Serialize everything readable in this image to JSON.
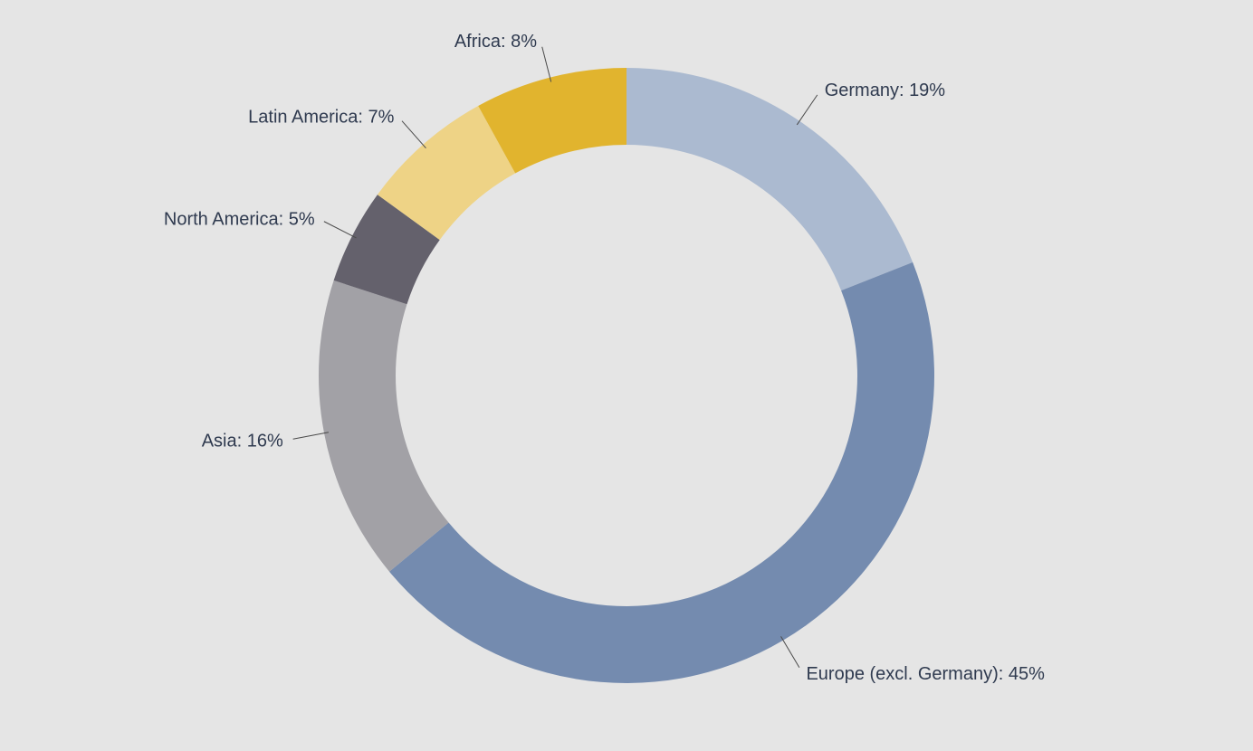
{
  "chart_data": {
    "type": "pie",
    "subtype": "donut",
    "background": "#e5e5e5",
    "start_angle_deg": 0,
    "direction": "clockwise",
    "unit": "%",
    "slices": [
      {
        "label": "Germany",
        "value": 19,
        "color": "#abbad0",
        "display": "Germany: 19%"
      },
      {
        "label": "Europe (excl. Germany)",
        "value": 45,
        "color": "#748baf",
        "display": "Europe (excl. Germany): 45%"
      },
      {
        "label": "Asia",
        "value": 16,
        "color": "#a2a1a6",
        "display": "Asia: 16%"
      },
      {
        "label": "North America",
        "value": 5,
        "color": "#64616c",
        "display": "North America: 5%"
      },
      {
        "label": "Latin America",
        "value": 7,
        "color": "#eed386",
        "display": "Latin America: 7%"
      },
      {
        "label": "Africa",
        "value": 8,
        "color": "#e1b42e",
        "display": "Africa: 8%"
      }
    ]
  }
}
